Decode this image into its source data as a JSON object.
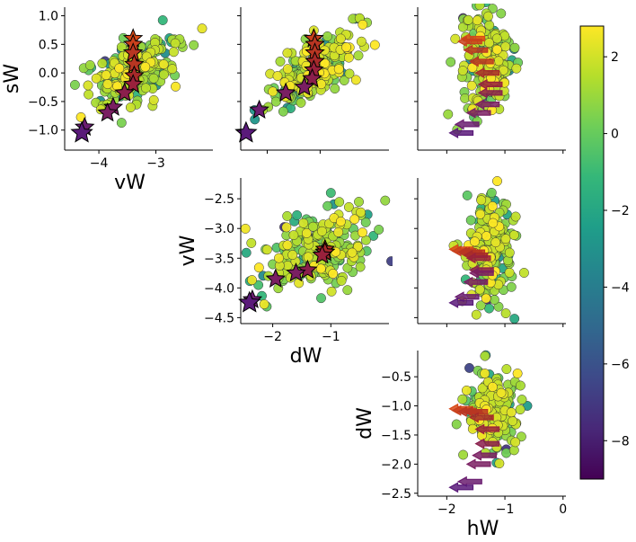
{
  "chart_data": {
    "type": "scatter",
    "description_kind": "pairwise scatter matrix with trajectory stars/arrows and shared colorbar",
    "colormap": "viridis",
    "colorbar": {
      "vmin": -9,
      "vmax": 2.8,
      "ticks": [
        2,
        0,
        -2,
        -4,
        -6,
        -8
      ],
      "tick_labels": [
        "2",
        "0",
        "−2",
        "−4",
        "−6",
        "−8"
      ]
    },
    "colormap_stops": [
      "#440154",
      "#482878",
      "#3e4989",
      "#31688e",
      "#26828e",
      "#1f9e89",
      "#35b779",
      "#6ece58",
      "#b5de2b",
      "#fde725"
    ],
    "trajectory": {
      "values": [
        -8.5,
        -8.0,
        -7.0,
        -6.0,
        -5.0,
        -3.0,
        -2.0,
        -1.0,
        0.0
      ],
      "colors": [
        "#5a1a7a",
        "#6a1d70",
        "#7a1f62",
        "#8a1f4c",
        "#99213c",
        "#a72a2a",
        "#b83622",
        "#c9401c",
        "#d84a18"
      ]
    },
    "panels": [
      {
        "id": "vW-sW",
        "xlabel": "vW",
        "ylabel": "sW",
        "xlim": [
          -4.6,
          -2.0
        ],
        "ylim": [
          -1.35,
          1.15
        ],
        "xticks": [
          -4,
          -3
        ],
        "xtick_labels": [
          "−4",
          "−3"
        ],
        "yticks": [
          -1.0,
          -0.5,
          0.0,
          0.5,
          1.0
        ],
        "ytick_labels": [
          "−1.0",
          "−0.5",
          "0.0",
          "0.5",
          "1.0"
        ],
        "cloud": {
          "cx": -3.35,
          "cy": 0.05,
          "sx": 0.38,
          "sy": 0.32,
          "rho": 0.55,
          "n": 240,
          "seed": 11
        },
        "marker": "star",
        "traj_x": [
          -4.3,
          -4.25,
          -3.85,
          -3.75,
          -3.55,
          -3.4,
          -3.38,
          -3.38,
          -3.4,
          -3.4,
          -3.4
        ],
        "traj_y": [
          -1.05,
          -0.95,
          -0.7,
          -0.6,
          -0.35,
          -0.2,
          -0.05,
          0.15,
          0.35,
          0.5,
          0.6
        ]
      },
      {
        "id": "dW-sW",
        "xlabel": "",
        "ylabel": "",
        "xlim": [
          -2.5,
          0.3
        ],
        "ylim": [
          -1.35,
          1.15
        ],
        "xticks": [
          -2,
          -1
        ],
        "xtick_labels": [],
        "yticks": [
          -1.0,
          -0.5,
          0.0,
          0.5,
          1.0
        ],
        "ytick_labels": [],
        "cloud": {
          "cx": -1.1,
          "cy": 0.05,
          "sx": 0.45,
          "sy": 0.32,
          "rho": 0.7,
          "n": 240,
          "seed": 23
        },
        "marker": "star",
        "traj_x": [
          -2.4,
          -2.15,
          -1.65,
          -1.3,
          -1.15,
          -1.12,
          -1.1,
          -1.1,
          -1.1,
          -1.12,
          -1.12
        ],
        "traj_y": [
          -1.05,
          -0.65,
          -0.35,
          -0.25,
          -0.1,
          0.05,
          0.2,
          0.35,
          0.5,
          0.6,
          0.6
        ]
      },
      {
        "id": "hW-sW",
        "xlabel": "",
        "ylabel": "",
        "xlim": [
          -2.5,
          0.05
        ],
        "ylim": [
          -1.35,
          1.15
        ],
        "xticks": [
          -2,
          -1,
          0
        ],
        "xtick_labels": [],
        "yticks": [
          -1.0,
          -0.5,
          0.0,
          0.5,
          1.0
        ],
        "ytick_labels": [],
        "cloud": {
          "cx": -1.25,
          "cy": 0.15,
          "sx": 0.22,
          "sy": 0.45,
          "rho": 0.1,
          "n": 220,
          "seed": 37,
          "arc": true
        },
        "marker": "arrow",
        "traj_x": [
          -1.75,
          -1.65,
          -1.45,
          -1.3,
          -1.25,
          -1.25,
          -1.3,
          -1.4,
          -1.5,
          -1.6,
          -1.55
        ],
        "traj_y": [
          -1.05,
          -0.9,
          -0.7,
          -0.55,
          -0.35,
          -0.2,
          0.0,
          0.2,
          0.4,
          0.55,
          0.6
        ]
      },
      {
        "id": "dW-vW",
        "xlabel": "dW",
        "ylabel": "vW",
        "xlim": [
          -2.55,
          0.0
        ],
        "ylim": [
          -4.6,
          -2.15
        ],
        "xticks": [
          -2,
          -1
        ],
        "xtick_labels": [
          "−2",
          "−1"
        ],
        "yticks": [
          -2.5,
          -3.0,
          -3.5,
          -4.0,
          -4.5
        ],
        "ytick_labels": [
          "−2.5",
          "−3.0",
          "−3.5",
          "−4.0",
          "−4.5"
        ],
        "cloud": {
          "cx": -1.2,
          "cy": -3.4,
          "sx": 0.5,
          "sy": 0.38,
          "rho": 0.45,
          "n": 240,
          "seed": 53
        },
        "marker": "star",
        "traj_x": [
          -2.4,
          -2.35,
          -1.95,
          -1.6,
          -1.4,
          -1.15,
          -1.1,
          -1.1,
          -1.1,
          -1.1,
          -1.1
        ],
        "traj_y": [
          -4.25,
          -4.2,
          -3.85,
          -3.75,
          -3.7,
          -3.45,
          -3.4,
          -3.4,
          -3.35,
          -3.4,
          -3.4
        ]
      },
      {
        "id": "hW-vW",
        "xlabel": "",
        "ylabel": "",
        "xlim": [
          -2.5,
          0.05
        ],
        "ylim": [
          -4.6,
          -2.15
        ],
        "xticks": [
          -2,
          -1,
          0
        ],
        "xtick_labels": [],
        "yticks": [
          -2.5,
          -3.0,
          -3.5,
          -4.0,
          -4.5
        ],
        "ytick_labels": [],
        "cloud": {
          "cx": -1.25,
          "cy": -3.3,
          "sx": 0.2,
          "sy": 0.42,
          "rho": 0.0,
          "n": 220,
          "seed": 71
        },
        "marker": "arrow",
        "traj_x": [
          -1.75,
          -1.65,
          -1.5,
          -1.4,
          -1.4,
          -1.45,
          -1.5,
          -1.55,
          -1.6,
          -1.7,
          -1.75
        ],
        "traj_y": [
          -4.25,
          -4.15,
          -3.9,
          -3.75,
          -3.7,
          -3.5,
          -3.45,
          -3.4,
          -3.4,
          -3.38,
          -3.35
        ]
      },
      {
        "id": "hW-dW",
        "xlabel": "hW",
        "ylabel": "dW",
        "xlim": [
          -2.5,
          0.05
        ],
        "ylim": [
          -2.55,
          -0.05
        ],
        "xticks": [
          -2,
          -1,
          0
        ],
        "xtick_labels": [
          "−2",
          "−1",
          "0"
        ],
        "yticks": [
          -0.5,
          -1.0,
          -1.5,
          -2.0,
          -2.5
        ],
        "ytick_labels": [
          "−0.5",
          "−1.0",
          "−1.5",
          "−2.0",
          "−2.5"
        ],
        "cloud": {
          "cx": -1.25,
          "cy": -1.1,
          "sx": 0.2,
          "sy": 0.35,
          "rho": 0.0,
          "n": 220,
          "seed": 89
        },
        "marker": "arrow",
        "traj_x": [
          -1.75,
          -1.6,
          -1.45,
          -1.35,
          -1.3,
          -1.3,
          -1.4,
          -1.5,
          -1.6,
          -1.7,
          -1.75
        ],
        "traj_y": [
          -2.4,
          -2.3,
          -2.0,
          -1.85,
          -1.65,
          -1.4,
          -1.2,
          -1.1,
          -1.1,
          -1.08,
          -1.05
        ]
      }
    ]
  }
}
